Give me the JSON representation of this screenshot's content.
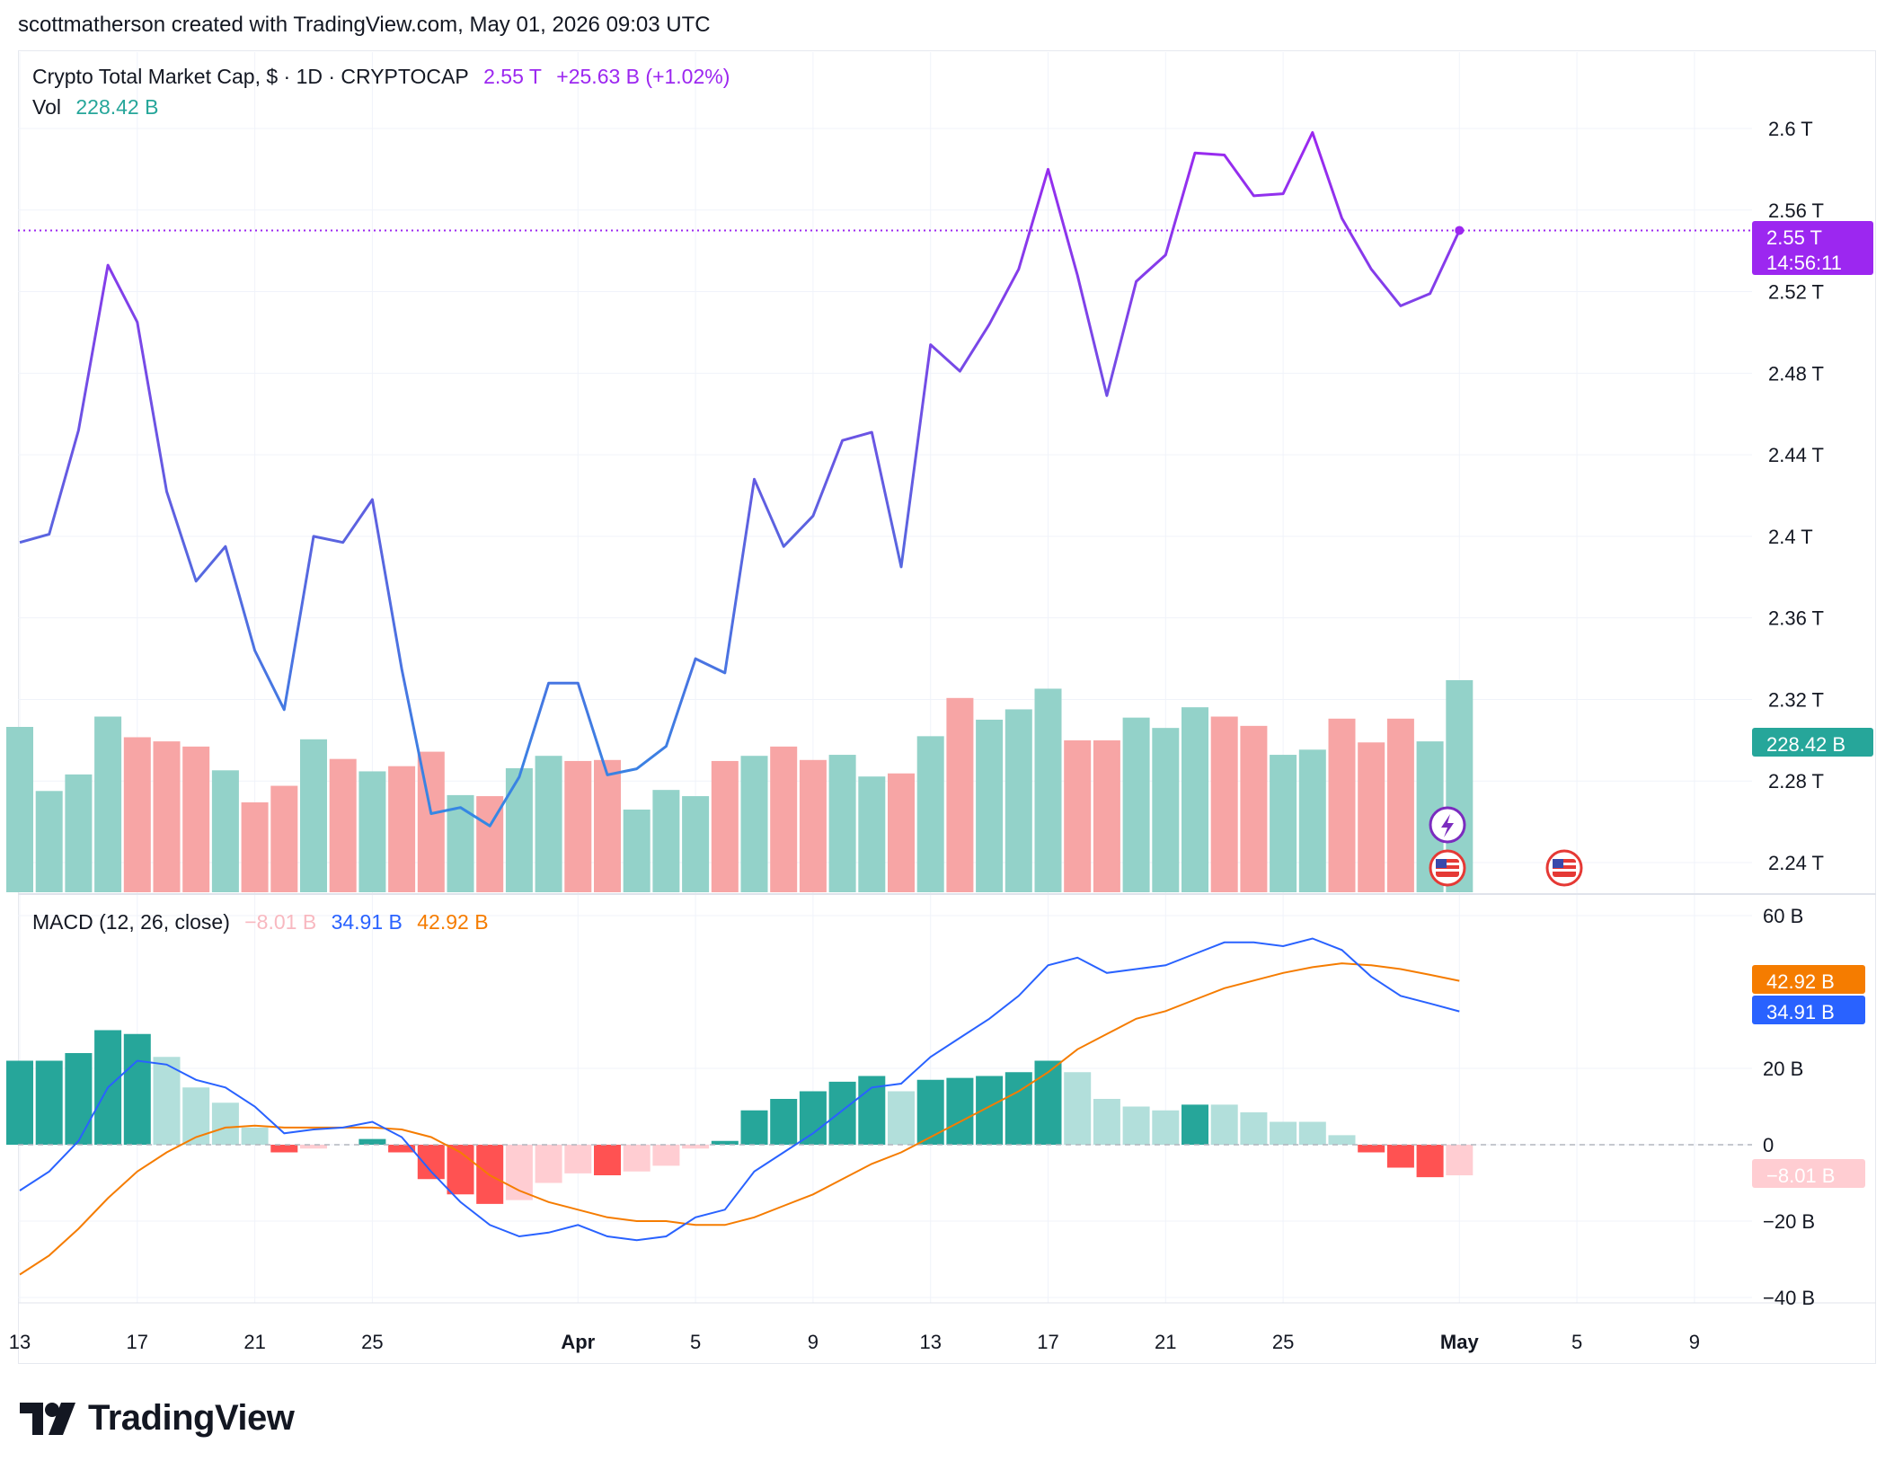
{
  "attribution": "scottmatherson created with TradingView.com, May 01, 2026 09:03 UTC",
  "legend_main": {
    "symbol": "Crypto Total Market Cap, $ · 1D · CRYPTOCAP",
    "price": "2.55 T",
    "change": "+25.63 B (+1.02%)"
  },
  "legend_vol": {
    "label": "Vol",
    "value": "228.42 B"
  },
  "legend_macd": {
    "label": "MACD (12, 26, close)",
    "hist": "−8.01 B",
    "macd": "34.91 B",
    "signal": "42.92 B"
  },
  "badges": {
    "price": "2.55 T",
    "countdown": "14:56:11",
    "volume": "228.42 B",
    "signal": "42.92 B",
    "macd": "34.91 B",
    "hist": "−8.01 B"
  },
  "logo": {
    "text": "TradingView"
  },
  "colors": {
    "purple": "#9c27f0",
    "blue_line": "#2f8de4",
    "vol_up": "#93d2c9",
    "vol_down": "#f7a5a5",
    "hist_up_strong": "#26a69a",
    "hist_up_weak": "#b2dfdb",
    "hist_down_strong": "#ff5252",
    "hist_down_weak": "#ffcdd2",
    "macd_line": "#2962ff",
    "signal_line": "#f57c00"
  },
  "chart_data": [
    {
      "type": "line",
      "title": "Crypto Total Market Cap",
      "xlabel": "",
      "ylabel": "",
      "unit": "T",
      "y_ticks": [
        "2.6 T",
        "2.56 T",
        "2.52 T",
        "2.48 T",
        "2.44 T",
        "2.4 T",
        "2.36 T",
        "2.32 T",
        "2.28 T",
        "2.24 T"
      ],
      "y_tick_values": [
        2.6,
        2.56,
        2.52,
        2.48,
        2.44,
        2.4,
        2.36,
        2.32,
        2.28,
        2.24
      ],
      "ylim": [
        2.225,
        2.62
      ],
      "x_tick_labels": [
        "13",
        "17",
        "21",
        "25",
        "Apr",
        "5",
        "9",
        "13",
        "17",
        "21",
        "25",
        "May",
        "5",
        "9"
      ],
      "x_tick_dates": [
        "2026-03-13",
        "2026-03-17",
        "2026-03-21",
        "2026-03-25",
        "2026-04-01",
        "2026-04-05",
        "2026-04-09",
        "2026-04-13",
        "2026-04-17",
        "2026-04-21",
        "2026-04-25",
        "2026-05-01",
        "2026-05-05",
        "2026-05-09"
      ],
      "x_start": "2026-03-13",
      "x_end": "2026-05-01",
      "values": [
        2.397,
        2.401,
        2.452,
        2.533,
        2.505,
        2.422,
        2.378,
        2.395,
        2.344,
        2.315,
        2.4,
        2.397,
        2.418,
        2.335,
        2.264,
        2.267,
        2.258,
        2.282,
        2.328,
        2.328,
        2.283,
        2.286,
        2.297,
        2.34,
        2.333,
        2.428,
        2.395,
        2.41,
        2.447,
        2.451,
        2.385,
        2.494,
        2.481,
        2.504,
        2.531,
        2.58,
        2.528,
        2.469,
        2.525,
        2.538,
        2.588,
        2.587,
        2.567,
        2.568,
        2.598,
        2.556,
        2.531,
        2.513,
        2.519,
        2.55
      ],
      "last_value": "2.55 T"
    },
    {
      "type": "bar",
      "title": "Vol",
      "unit": "B",
      "x_start": "2026-03-13",
      "values": [
        160,
        98,
        114,
        170,
        150,
        146,
        141,
        118,
        87,
        103,
        148,
        129,
        117,
        122,
        136,
        94,
        93,
        120,
        132,
        127,
        128,
        80,
        99,
        93,
        127,
        132,
        141,
        128,
        133,
        112,
        115,
        151,
        188,
        167,
        177,
        197,
        147,
        147,
        169,
        159,
        179,
        170,
        161,
        133,
        138,
        168,
        145,
        168,
        146,
        228.42
      ],
      "directions": [
        "up",
        "up",
        "up",
        "up",
        "down",
        "down",
        "down",
        "up",
        "down",
        "down",
        "up",
        "down",
        "up",
        "down",
        "down",
        "up",
        "down",
        "up",
        "up",
        "down",
        "down",
        "up",
        "up",
        "up",
        "down",
        "up",
        "down",
        "down",
        "up",
        "up",
        "down",
        "up",
        "down",
        "up",
        "up",
        "up",
        "down",
        "down",
        "up",
        "up",
        "up",
        "down",
        "down",
        "up",
        "up",
        "down",
        "down",
        "down",
        "up",
        "up"
      ],
      "last_value": "228.42 B"
    },
    {
      "type": "line",
      "title": "MACD (12, 26, close)",
      "unit": "B",
      "y_ticks": [
        "60 B",
        "20 B",
        "0",
        "−20 B",
        "−40 B"
      ],
      "y_tick_values": [
        60,
        20,
        0,
        -20,
        -40
      ],
      "ylim": [
        -45,
        62
      ],
      "x_start": "2026-03-13",
      "series": [
        {
          "name": "MACD",
          "values": [
            -12,
            -7,
            1,
            15,
            22,
            21,
            17,
            15,
            10,
            3,
            4,
            4.5,
            6,
            2,
            -7,
            -15,
            -21,
            -24,
            -23,
            -21,
            -24,
            -25,
            -24,
            -19,
            -17,
            -7,
            -2,
            3,
            9,
            15,
            16,
            23,
            28,
            33,
            39,
            47,
            49,
            45,
            46,
            47,
            50,
            53,
            53,
            52,
            54,
            51,
            44,
            39,
            37,
            34.91
          ]
        },
        {
          "name": "Signal",
          "values": [
            -34,
            -29,
            -22,
            -14,
            -7,
            -2,
            2,
            4.5,
            5,
            4.5,
            4.5,
            4.5,
            4.5,
            4,
            2,
            -2,
            -8,
            -12,
            -15,
            -17,
            -19,
            -20,
            -20,
            -21,
            -21,
            -19,
            -16,
            -13,
            -9,
            -5,
            -2,
            2,
            6,
            10,
            14,
            19,
            25,
            29,
            33,
            35,
            38,
            41,
            43,
            45,
            46.5,
            47.5,
            47,
            46,
            44.5,
            42.92
          ]
        },
        {
          "name": "Histogram",
          "values": [
            22,
            22,
            24,
            30,
            29,
            23,
            15,
            11,
            4.5,
            -2,
            -1,
            0,
            1.5,
            -2,
            -9,
            -13,
            -15.5,
            -14.5,
            -10,
            -7.5,
            -8,
            -7,
            -5.5,
            -1,
            1,
            9,
            12,
            14,
            16.5,
            18,
            14,
            17,
            17.5,
            18,
            19,
            22,
            19,
            12,
            10,
            9,
            10.5,
            10.5,
            8.5,
            6,
            6,
            2.5,
            -2,
            -6,
            -8.5,
            -8.01
          ],
          "shades": [
            "strong",
            "strong",
            "strong",
            "strong",
            "strong",
            "weak",
            "weak",
            "weak",
            "weak",
            "strong",
            "weak",
            "weak",
            "strong",
            "strong",
            "strong",
            "strong",
            "strong",
            "weak",
            "weak",
            "weak",
            "strong",
            "weak",
            "weak",
            "weak",
            "strong",
            "strong",
            "strong",
            "strong",
            "strong",
            "strong",
            "weak",
            "strong",
            "strong",
            "strong",
            "strong",
            "strong",
            "weak",
            "weak",
            "weak",
            "weak",
            "strong",
            "weak",
            "weak",
            "weak",
            "weak",
            "weak",
            "strong",
            "strong",
            "strong",
            "weak"
          ]
        }
      ]
    }
  ]
}
